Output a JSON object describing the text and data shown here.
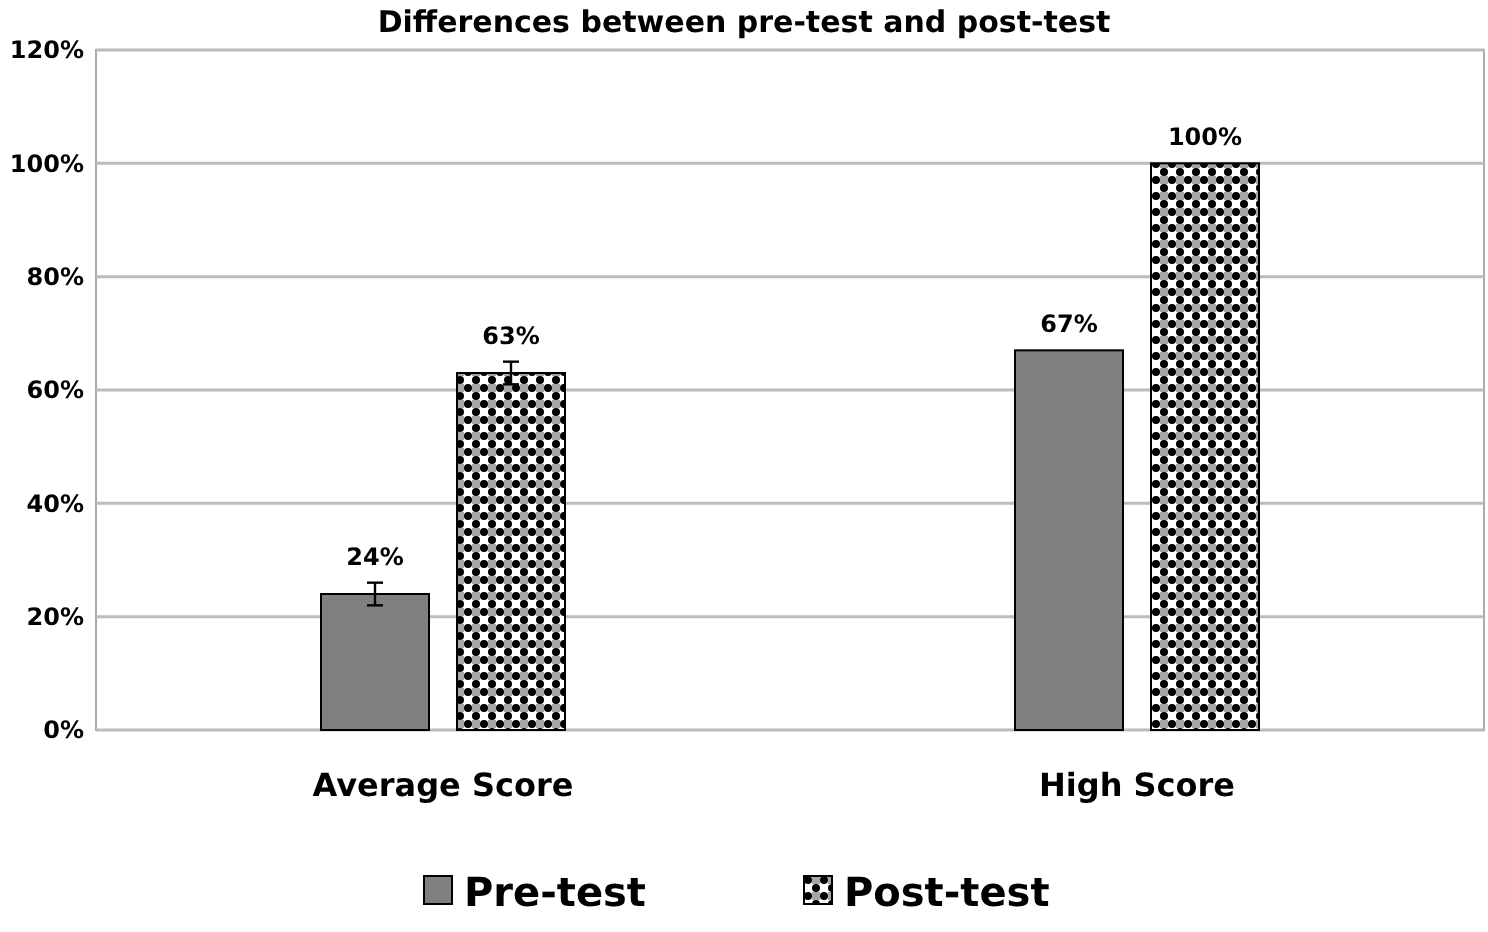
{
  "chart_data": {
    "type": "bar",
    "title": "Differences between pre-test and post-test",
    "categories": [
      "Average Score",
      "High Score"
    ],
    "series": [
      {
        "name": "Pre-test",
        "color": "#808080",
        "values": [
          24,
          67
        ],
        "errors": [
          2,
          null
        ]
      },
      {
        "name": "Post-test",
        "color": "#000000",
        "values": [
          63,
          100
        ],
        "errors": [
          2,
          null
        ]
      }
    ],
    "ylim": [
      0,
      120
    ],
    "yticks": [
      {
        "value": 0,
        "label": "0%"
      },
      {
        "value": 20,
        "label": "20%"
      },
      {
        "value": 40,
        "label": "40%"
      },
      {
        "value": 60,
        "label": "60%"
      },
      {
        "value": 80,
        "label": "80%"
      },
      {
        "value": 100,
        "label": "100%"
      },
      {
        "value": 120,
        "label": "120%"
      }
    ],
    "value_labels": [
      [
        "24%",
        "67%"
      ],
      [
        "63%",
        "100%"
      ]
    ],
    "grid": "y",
    "legend": "bottom"
  }
}
